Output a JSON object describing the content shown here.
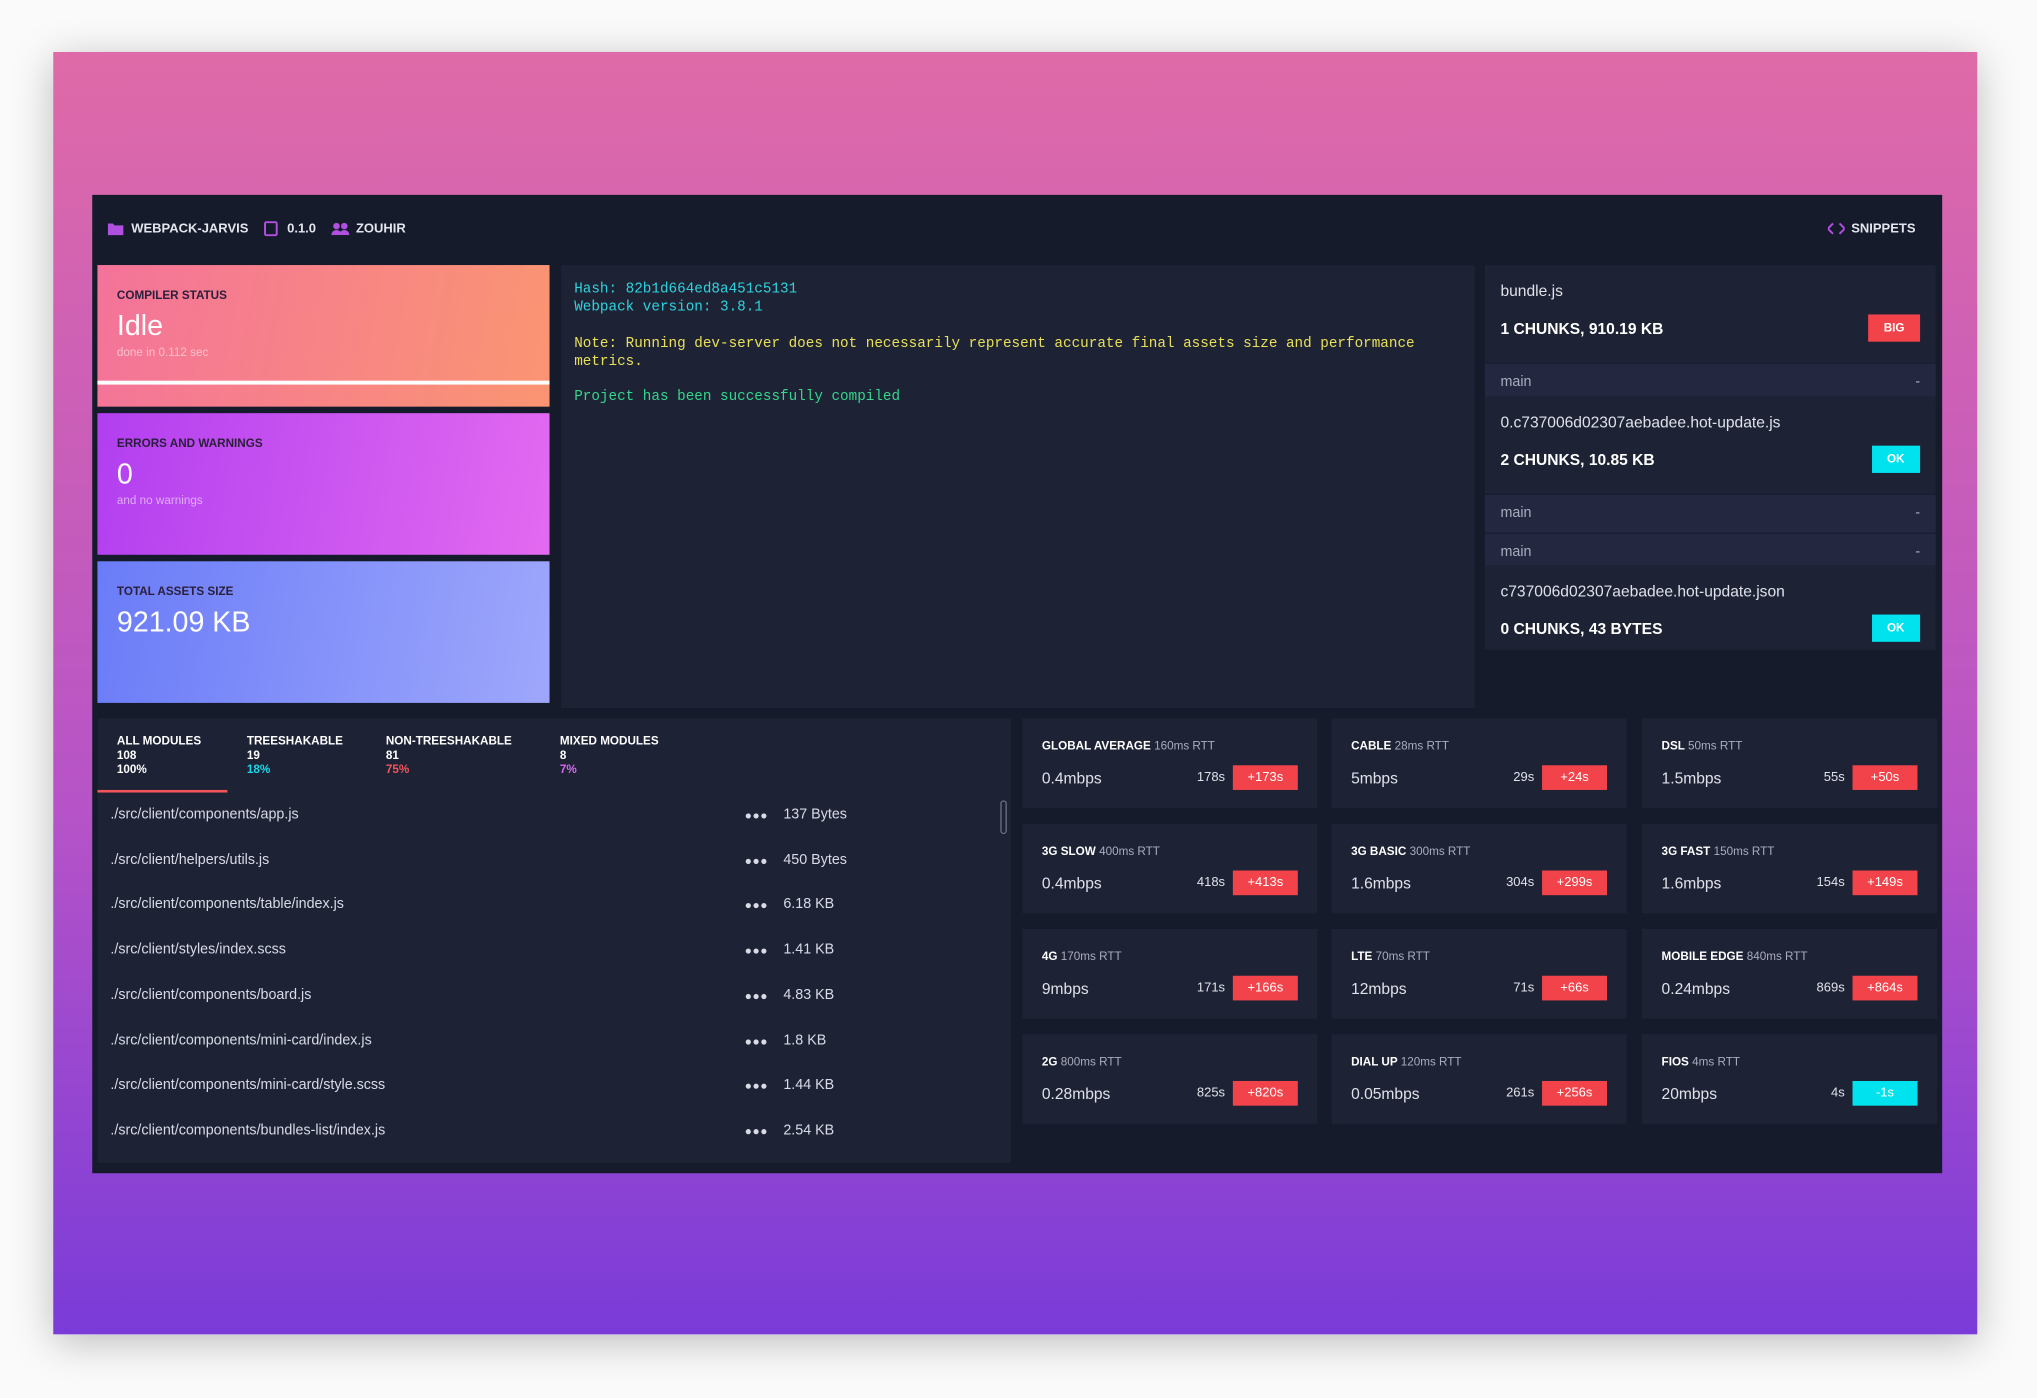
{
  "header": {
    "project": "WEBPACK-JARVIS",
    "version": "0.1.0",
    "user": "ZOUHIR",
    "snippets": "SNIPPETS"
  },
  "status_cards": [
    {
      "title": "COMPILER STATUS",
      "value": "Idle",
      "note": "done in 0.112 sec",
      "colors": [
        "#f4739a",
        "#fa9572"
      ]
    },
    {
      "title": "ERRORS AND WARNINGS",
      "value": "0",
      "note": "and no warnings",
      "colors": [
        "#b23ff0",
        "#e36af0"
      ]
    },
    {
      "title": "TOTAL ASSETS SIZE",
      "value": "921.09 KB",
      "colors": [
        "#6a7cf8",
        "#9ea7fb"
      ]
    }
  ],
  "log": {
    "lines": [
      "Hash: 82b1d664ed8a451c5131",
      "Webpack version: 3.8.1"
    ],
    "note": "Note: Running dev-server does not necessarily represent accurate final assets size and performance metrics.",
    "success": "Project has been successfully compiled"
  },
  "bundles": [
    {
      "name": "bundle.js",
      "summary": "1 CHUNKS, 910.19 KB",
      "badge": "BIG",
      "badge_color": "#f2434b",
      "chunks": [
        {
          "name": "main",
          "value": "-"
        }
      ]
    },
    {
      "name": "0.c737006d02307aebadee.hot-update.js",
      "summary": "2 CHUNKS, 10.85 KB",
      "badge": "OK",
      "badge_color": "#00e3ee",
      "chunks": [
        {
          "name": "main",
          "value": "-"
        },
        {
          "name": "main",
          "value": "-"
        }
      ]
    },
    {
      "name": "c737006d02307aebadee.hot-update.json",
      "summary": "0 CHUNKS, 43 BYTES",
      "badge": "OK",
      "badge_color": "#00e3ee",
      "chunks": []
    }
  ],
  "module_tabs": [
    {
      "label": "ALL MODULES",
      "count": "108",
      "percent": "100%",
      "color": "#ffffff"
    },
    {
      "label": "TREESHAKABLE",
      "count": "19",
      "percent": "18%",
      "color": "#19d8e8"
    },
    {
      "label": "NON-TREESHAKABLE",
      "count": "81",
      "percent": "75%",
      "color": "#f2565a"
    },
    {
      "label": "MIXED MODULES",
      "count": "8",
      "percent": "7%",
      "color": "#d769f0"
    }
  ],
  "modules": [
    {
      "path": "./src/client/components/app.js",
      "size": "137 Bytes"
    },
    {
      "path": "./src/client/helpers/utils.js",
      "size": "450 Bytes"
    },
    {
      "path": "./src/client/components/table/index.js",
      "size": "6.18 KB"
    },
    {
      "path": "./src/client/styles/index.scss",
      "size": "1.41 KB"
    },
    {
      "path": "./src/client/components/board.js",
      "size": "4.83 KB"
    },
    {
      "path": "./src/client/components/mini-card/index.js",
      "size": "1.8 KB"
    },
    {
      "path": "./src/client/components/mini-card/style.scss",
      "size": "1.44 KB"
    },
    {
      "path": "./src/client/components/bundles-list/index.js",
      "size": "2.54 KB"
    }
  ],
  "network": [
    {
      "name": "GLOBAL AVERAGE",
      "rtt": "160ms RTT",
      "speed": "0.4mbps",
      "time": "178s",
      "delta": "+173s",
      "color": "#f2434b"
    },
    {
      "name": "CABLE",
      "rtt": "28ms RTT",
      "speed": "5mbps",
      "time": "29s",
      "delta": "+24s",
      "color": "#f2434b"
    },
    {
      "name": "DSL",
      "rtt": "50ms RTT",
      "speed": "1.5mbps",
      "time": "55s",
      "delta": "+50s",
      "color": "#f2434b"
    },
    {
      "name": "3G SLOW",
      "rtt": "400ms RTT",
      "speed": "0.4mbps",
      "time": "418s",
      "delta": "+413s",
      "color": "#f2434b"
    },
    {
      "name": "3G BASIC",
      "rtt": "300ms RTT",
      "speed": "1.6mbps",
      "time": "304s",
      "delta": "+299s",
      "color": "#f2434b"
    },
    {
      "name": "3G FAST",
      "rtt": "150ms RTT",
      "speed": "1.6mbps",
      "time": "154s",
      "delta": "+149s",
      "color": "#f2434b"
    },
    {
      "name": "4G",
      "rtt": "170ms RTT",
      "speed": "9mbps",
      "time": "171s",
      "delta": "+166s",
      "color": "#f2434b"
    },
    {
      "name": "LTE",
      "rtt": "70ms RTT",
      "speed": "12mbps",
      "time": "71s",
      "delta": "+66s",
      "color": "#f2434b"
    },
    {
      "name": "MOBILE EDGE",
      "rtt": "840ms RTT",
      "speed": "0.24mbps",
      "time": "869s",
      "delta": "+864s",
      "color": "#f2434b"
    },
    {
      "name": "2G",
      "rtt": "800ms RTT",
      "speed": "0.28mbps",
      "time": "825s",
      "delta": "+820s",
      "color": "#f2434b"
    },
    {
      "name": "DIAL UP",
      "rtt": "120ms RTT",
      "speed": "0.05mbps",
      "time": "261s",
      "delta": "+256s",
      "color": "#f2434b"
    },
    {
      "name": "FIOS",
      "rtt": "4ms RTT",
      "speed": "20mbps",
      "time": "4s",
      "delta": "-1s",
      "color": "#00e3ee"
    }
  ]
}
